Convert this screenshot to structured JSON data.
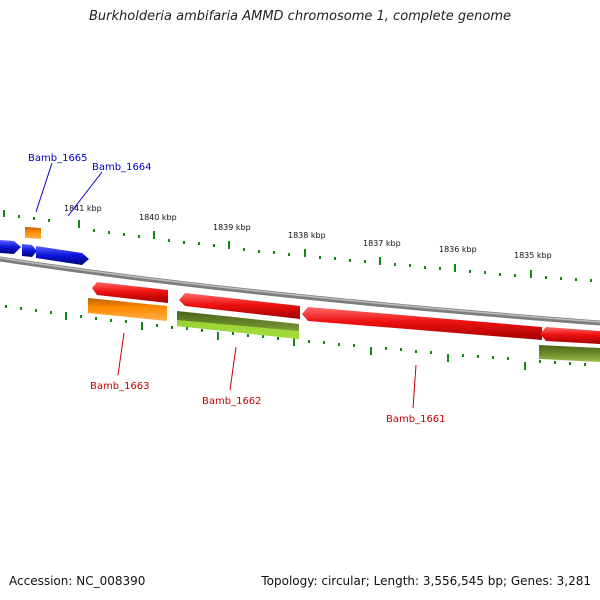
{
  "title": "Burkholderia ambifaria AMMD chromosome 1, complete genome",
  "footer": {
    "accession": "Accession: NC_008390",
    "stats": "Topology: circular; Length: 3,556,545 bp; Genes: 3,281"
  },
  "scale_labels": [
    "1841 kbp",
    "1840 kbp",
    "1839 kbp",
    "1838 kbp",
    "1837 kbp",
    "1836 kbp",
    "1835 kbp"
  ],
  "gene_labels": {
    "g1665": "Bamb_1665",
    "g1664": "Bamb_1664",
    "g1663": "Bamb_1663",
    "g1662": "Bamb_1662",
    "g1661": "Bamb_1661"
  },
  "colors": {
    "forward_label": "#0000cc",
    "reverse_label": "#cc0000",
    "tick": "#118811",
    "backbone": "#8a8a8a",
    "blue_feature": "#0a14d8",
    "red_feature": "#ee1111",
    "orange_feature": "#ff8a00",
    "olive_feature": "#6b8a2a",
    "lime_feature": "#a6e23a"
  }
}
